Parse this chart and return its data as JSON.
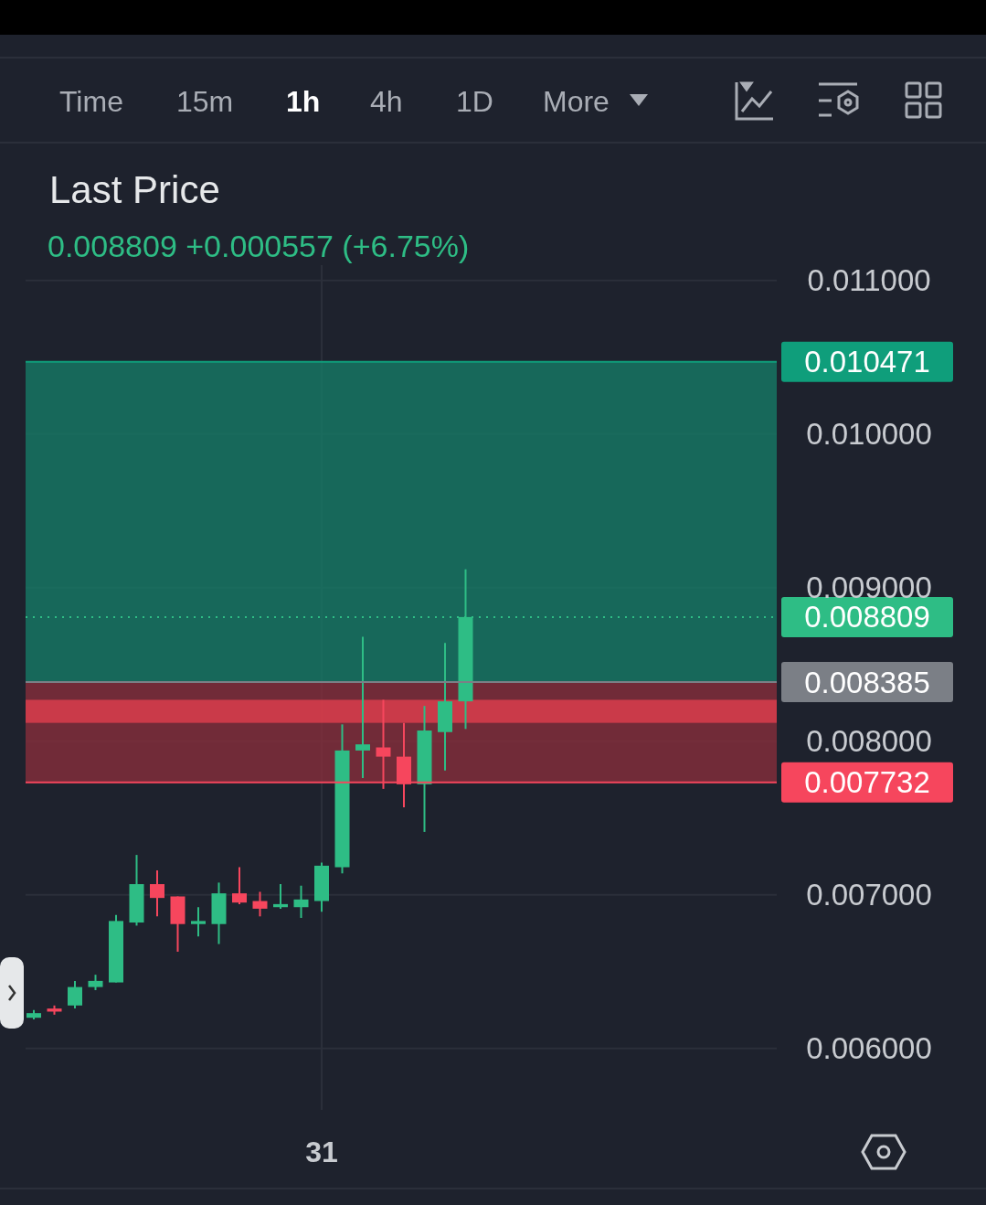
{
  "chart_data": {
    "type": "candlestick",
    "title": "Last Price",
    "subtitle": "0.008809  +0.000557 (+6.75%)",
    "annotations": [
      "Time",
      "15m",
      "1h",
      "4h",
      "1D",
      "More"
    ],
    "categories": [
      null,
      null,
      null,
      null,
      null,
      null,
      null,
      null,
      null,
      null,
      null,
      null,
      null,
      null,
      "31",
      null,
      null,
      null,
      null,
      null,
      null,
      null,
      null,
      null,
      null,
      null,
      null,
      null,
      null,
      null,
      null,
      null,
      null,
      null,
      null,
      null,
      null
    ],
    "ohlc": [
      [
        0.0062,
        0.00625,
        0.00619,
        0.00623
      ],
      [
        0.00626,
        0.00628,
        0.00622,
        0.00624
      ],
      [
        0.00628,
        0.00644,
        0.00626,
        0.0064
      ],
      [
        0.0064,
        0.00648,
        0.00638,
        0.00644
      ],
      [
        0.00643,
        0.00687,
        0.00643,
        0.00683
      ],
      [
        0.00682,
        0.00726,
        0.0068,
        0.00707
      ],
      [
        0.00707,
        0.00716,
        0.00686,
        0.00698
      ],
      [
        0.00699,
        0.00699,
        0.00663,
        0.00681
      ],
      [
        0.00681,
        0.00692,
        0.00673,
        0.00683
      ],
      [
        0.00681,
        0.00708,
        0.00668,
        0.00701
      ],
      [
        0.00701,
        0.00718,
        0.00694,
        0.00695
      ],
      [
        0.00696,
        0.00702,
        0.00686,
        0.00691
      ],
      [
        0.00692,
        0.00707,
        0.00691,
        0.00694
      ],
      [
        0.00692,
        0.00706,
        0.00685,
        0.00697
      ],
      [
        0.00696,
        0.00721,
        0.00689,
        0.00719
      ],
      [
        0.00718,
        0.00811,
        0.00714,
        0.00794
      ],
      [
        0.00794,
        0.00868,
        0.00776,
        0.00798
      ],
      [
        0.00796,
        0.00827,
        0.00769,
        0.0079
      ],
      [
        0.0079,
        0.00812,
        0.00757,
        0.00772
      ],
      [
        0.00772,
        0.00823,
        0.00741,
        0.00807
      ],
      [
        0.00806,
        0.00864,
        0.00781,
        0.00826
      ],
      [
        0.00826,
        0.00912,
        0.00808,
        0.008809
      ],
      null,
      null,
      null,
      null,
      null,
      null,
      null,
      null,
      null,
      null,
      null,
      null,
      null,
      null,
      null
    ],
    "colors": [
      "#2ebd85",
      "#f6465d",
      "#2ebd85",
      "#2ebd85",
      "#2ebd85",
      "#2ebd85",
      "#f6465d",
      "#f6465d",
      "#2ebd85",
      "#2ebd85",
      "#f6465d",
      "#f6465d",
      "#2ebd85",
      "#2ebd85",
      "#2ebd85",
      "#2ebd85",
      "#2ebd85",
      "#f6465d",
      "#f6465d",
      "#2ebd85",
      "#2ebd85",
      "#2ebd85",
      null,
      null,
      null,
      null,
      null,
      null,
      null,
      null,
      null,
      null,
      null,
      null,
      null,
      null,
      null
    ],
    "ylim": [
      0.0056,
      0.0111
    ],
    "yticks": [
      {
        "value": 0.006,
        "label": "0.006000"
      },
      {
        "value": 0.007,
        "label": "0.007000"
      },
      {
        "value": 0.008,
        "label": "0.008000"
      },
      {
        "value": 0.009,
        "label": "0.009000"
      },
      {
        "value": 0.01,
        "label": "0.010000"
      },
      {
        "value": 0.011,
        "label": "0.011000"
      }
    ],
    "grid": true,
    "bands": [
      {
        "axis": "y",
        "from": 0.008385,
        "to": 0.010471,
        "color": "#16806a"
      },
      {
        "axis": "y",
        "from": 0.007732,
        "to": 0.008385,
        "color": "#8e2f3c"
      },
      {
        "axis": "y",
        "from": 0.00812,
        "to": 0.00827,
        "color": "#e8404f"
      }
    ],
    "ref_lines": [
      {
        "axis": "y",
        "value": 0.010471,
        "label": "0.010471",
        "color": "#0f9e7b"
      },
      {
        "axis": "y",
        "value": 0.008809,
        "label": "0.008809",
        "color": "#2ebd85",
        "line_style": "dotted"
      },
      {
        "axis": "y",
        "value": 0.008385,
        "label": "0.008385",
        "color": "#7b7f86"
      },
      {
        "axis": "y",
        "value": 0.007732,
        "label": "0.007732",
        "color": "#f6465d"
      }
    ]
  }
}
